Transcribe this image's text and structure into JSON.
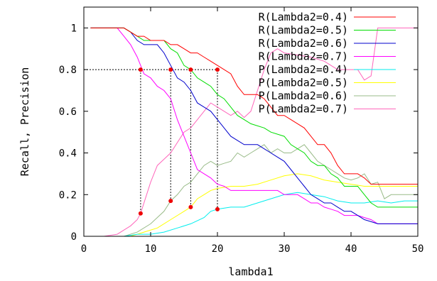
{
  "chart_data": {
    "type": "line",
    "xlabel": "lambda1",
    "ylabel": "Recall, Precision",
    "xlim": [
      0,
      50
    ],
    "ylim": [
      0,
      1.1
    ],
    "xticks": [
      0,
      10,
      20,
      30,
      40,
      50
    ],
    "yticks": [
      0,
      0.2,
      0.4,
      0.6,
      0.8,
      1
    ],
    "ytick_labels": [
      "0",
      "0.2",
      "0.4",
      "0.6",
      "0.8",
      "1"
    ],
    "grid": false,
    "legend_position": "top-right",
    "series": [
      {
        "name": "R(Lambda2=0.4)",
        "color": "#ff0000",
        "points": [
          [
            1,
            1
          ],
          [
            5,
            1
          ],
          [
            6,
            1
          ],
          [
            7,
            0.98
          ],
          [
            8,
            0.96
          ],
          [
            9,
            0.96
          ],
          [
            10,
            0.94
          ],
          [
            12,
            0.94
          ],
          [
            13,
            0.92
          ],
          [
            14,
            0.92
          ],
          [
            15,
            0.9
          ],
          [
            16,
            0.88
          ],
          [
            17,
            0.88
          ],
          [
            18,
            0.86
          ],
          [
            19,
            0.84
          ],
          [
            20,
            0.82
          ],
          [
            21,
            0.8
          ],
          [
            22,
            0.78
          ],
          [
            23,
            0.72
          ],
          [
            24,
            0.68
          ],
          [
            26,
            0.68
          ],
          [
            27,
            0.66
          ],
          [
            28,
            0.62
          ],
          [
            29,
            0.58
          ],
          [
            30,
            0.58
          ],
          [
            31,
            0.56
          ],
          [
            32,
            0.54
          ],
          [
            33,
            0.52
          ],
          [
            34,
            0.48
          ],
          [
            35,
            0.44
          ],
          [
            36,
            0.44
          ],
          [
            37,
            0.4
          ],
          [
            38,
            0.34
          ],
          [
            39,
            0.3
          ],
          [
            41,
            0.3
          ],
          [
            42,
            0.28
          ],
          [
            43,
            0.25
          ],
          [
            50,
            0.25
          ]
        ]
      },
      {
        "name": "R(Lambda2=0.5)",
        "color": "#00dd00",
        "points": [
          [
            1,
            1
          ],
          [
            5,
            1
          ],
          [
            6,
            1
          ],
          [
            7,
            0.98
          ],
          [
            8,
            0.96
          ],
          [
            9,
            0.94
          ],
          [
            12,
            0.94
          ],
          [
            13,
            0.9
          ],
          [
            14,
            0.88
          ],
          [
            15,
            0.82
          ],
          [
            16,
            0.8
          ],
          [
            17,
            0.76
          ],
          [
            18,
            0.74
          ],
          [
            19,
            0.72
          ],
          [
            20,
            0.68
          ],
          [
            21,
            0.66
          ],
          [
            22,
            0.62
          ],
          [
            23,
            0.58
          ],
          [
            24,
            0.56
          ],
          [
            25,
            0.54
          ],
          [
            27,
            0.52
          ],
          [
            28,
            0.5
          ],
          [
            30,
            0.48
          ],
          [
            31,
            0.44
          ],
          [
            32,
            0.42
          ],
          [
            33,
            0.4
          ],
          [
            34,
            0.36
          ],
          [
            35,
            0.34
          ],
          [
            36,
            0.34
          ],
          [
            37,
            0.3
          ],
          [
            38,
            0.28
          ],
          [
            39,
            0.24
          ],
          [
            41,
            0.24
          ],
          [
            42,
            0.2
          ],
          [
            43,
            0.16
          ],
          [
            44,
            0.14
          ],
          [
            50,
            0.14
          ]
        ]
      },
      {
        "name": "R(Lambda2=0.6)",
        "color": "#0000cc",
        "points": [
          [
            1,
            1
          ],
          [
            5,
            1
          ],
          [
            6,
            1
          ],
          [
            7,
            0.98
          ],
          [
            8,
            0.94
          ],
          [
            9,
            0.92
          ],
          [
            11,
            0.92
          ],
          [
            12,
            0.88
          ],
          [
            13,
            0.82
          ],
          [
            14,
            0.76
          ],
          [
            15,
            0.74
          ],
          [
            16,
            0.7
          ],
          [
            17,
            0.64
          ],
          [
            18,
            0.62
          ],
          [
            19,
            0.6
          ],
          [
            20,
            0.56
          ],
          [
            21,
            0.52
          ],
          [
            22,
            0.48
          ],
          [
            23,
            0.46
          ],
          [
            24,
            0.44
          ],
          [
            26,
            0.44
          ],
          [
            27,
            0.42
          ],
          [
            28,
            0.4
          ],
          [
            29,
            0.38
          ],
          [
            30,
            0.36
          ],
          [
            31,
            0.32
          ],
          [
            32,
            0.28
          ],
          [
            33,
            0.24
          ],
          [
            34,
            0.2
          ],
          [
            35,
            0.18
          ],
          [
            36,
            0.16
          ],
          [
            37,
            0.16
          ],
          [
            38,
            0.14
          ],
          [
            39,
            0.12
          ],
          [
            40,
            0.12
          ],
          [
            41,
            0.1
          ],
          [
            42,
            0.08
          ],
          [
            43,
            0.07
          ],
          [
            44,
            0.06
          ],
          [
            50,
            0.06
          ]
        ]
      },
      {
        "name": "R(Lambda2=0.7)",
        "color": "#ff00ff",
        "points": [
          [
            1,
            1
          ],
          [
            5,
            1
          ],
          [
            6,
            0.96
          ],
          [
            7,
            0.92
          ],
          [
            8,
            0.86
          ],
          [
            9,
            0.78
          ],
          [
            10,
            0.76
          ],
          [
            11,
            0.72
          ],
          [
            12,
            0.7
          ],
          [
            13,
            0.66
          ],
          [
            14,
            0.56
          ],
          [
            15,
            0.48
          ],
          [
            16,
            0.4
          ],
          [
            17,
            0.32
          ],
          [
            18,
            0.3
          ],
          [
            19,
            0.28
          ],
          [
            20,
            0.25
          ],
          [
            21,
            0.24
          ],
          [
            22,
            0.22
          ],
          [
            29,
            0.22
          ],
          [
            30,
            0.2
          ],
          [
            32,
            0.2
          ],
          [
            33,
            0.18
          ],
          [
            34,
            0.16
          ],
          [
            35,
            0.16
          ],
          [
            36,
            0.14
          ],
          [
            37,
            0.13
          ],
          [
            38,
            0.12
          ],
          [
            39,
            0.1
          ],
          [
            41,
            0.1
          ],
          [
            42,
            0.09
          ],
          [
            43,
            0.08
          ],
          [
            44,
            0.06
          ],
          [
            50,
            0.06
          ]
        ]
      },
      {
        "name": "P(Lambda2=0.4)",
        "color": "#00eeee",
        "points": [
          [
            0,
            0
          ],
          [
            4,
            0
          ],
          [
            6,
            0
          ],
          [
            8,
            0.01
          ],
          [
            10,
            0.01
          ],
          [
            12,
            0.02
          ],
          [
            14,
            0.04
          ],
          [
            16,
            0.06
          ],
          [
            18,
            0.09
          ],
          [
            19,
            0.12
          ],
          [
            20,
            0.13
          ],
          [
            22,
            0.14
          ],
          [
            24,
            0.14
          ],
          [
            26,
            0.16
          ],
          [
            28,
            0.18
          ],
          [
            30,
            0.2
          ],
          [
            32,
            0.21
          ],
          [
            34,
            0.2
          ],
          [
            36,
            0.19
          ],
          [
            38,
            0.17
          ],
          [
            40,
            0.16
          ],
          [
            42,
            0.16
          ],
          [
            44,
            0.17
          ],
          [
            46,
            0.16
          ],
          [
            48,
            0.17
          ],
          [
            50,
            0.17
          ]
        ]
      },
      {
        "name": "P(Lambda2=0.5)",
        "color": "#ffff00",
        "points": [
          [
            0,
            0
          ],
          [
            4,
            0
          ],
          [
            7,
            0
          ],
          [
            9,
            0.02
          ],
          [
            11,
            0.04
          ],
          [
            13,
            0.08
          ],
          [
            15,
            0.12
          ],
          [
            16,
            0.14
          ],
          [
            17,
            0.18
          ],
          [
            18,
            0.2
          ],
          [
            19,
            0.22
          ],
          [
            20,
            0.23
          ],
          [
            22,
            0.24
          ],
          [
            24,
            0.24
          ],
          [
            26,
            0.25
          ],
          [
            28,
            0.27
          ],
          [
            30,
            0.29
          ],
          [
            32,
            0.3
          ],
          [
            34,
            0.29
          ],
          [
            36,
            0.27
          ],
          [
            38,
            0.26
          ],
          [
            40,
            0.25
          ],
          [
            42,
            0.24
          ],
          [
            44,
            0.24
          ],
          [
            46,
            0.24
          ],
          [
            50,
            0.24
          ]
        ]
      },
      {
        "name": "P(Lambda2=0.6)",
        "color": "#99bb88",
        "points": [
          [
            0,
            0
          ],
          [
            4,
            0
          ],
          [
            6,
            0
          ],
          [
            8,
            0.02
          ],
          [
            10,
            0.06
          ],
          [
            12,
            0.12
          ],
          [
            13,
            0.17
          ],
          [
            14,
            0.2
          ],
          [
            15,
            0.24
          ],
          [
            16,
            0.26
          ],
          [
            17,
            0.3
          ],
          [
            18,
            0.34
          ],
          [
            19,
            0.36
          ],
          [
            20,
            0.34
          ],
          [
            21,
            0.35
          ],
          [
            22,
            0.36
          ],
          [
            23,
            0.4
          ],
          [
            24,
            0.38
          ],
          [
            25,
            0.4
          ],
          [
            26,
            0.42
          ],
          [
            27,
            0.44
          ],
          [
            28,
            0.4
          ],
          [
            29,
            0.42
          ],
          [
            30,
            0.4
          ],
          [
            31,
            0.4
          ],
          [
            32,
            0.42
          ],
          [
            33,
            0.44
          ],
          [
            34,
            0.4
          ],
          [
            35,
            0.36
          ],
          [
            36,
            0.34
          ],
          [
            37,
            0.32
          ],
          [
            38,
            0.3
          ],
          [
            39,
            0.28
          ],
          [
            40,
            0.27
          ],
          [
            41,
            0.28
          ],
          [
            42,
            0.3
          ],
          [
            43,
            0.25
          ],
          [
            44,
            0.26
          ],
          [
            45,
            0.18
          ],
          [
            46,
            0.2
          ],
          [
            50,
            0.2
          ]
        ]
      },
      {
        "name": "P(Lambda2=0.7)",
        "color": "#ff66bb",
        "points": [
          [
            0,
            0
          ],
          [
            3,
            0
          ],
          [
            5,
            0.01
          ],
          [
            6,
            0.03
          ],
          [
            7,
            0.05
          ],
          [
            8,
            0.08
          ],
          [
            8.5,
            0.11
          ],
          [
            9,
            0.16
          ],
          [
            10,
            0.26
          ],
          [
            11,
            0.34
          ],
          [
            12,
            0.37
          ],
          [
            13,
            0.4
          ],
          [
            14,
            0.45
          ],
          [
            15,
            0.5
          ],
          [
            16,
            0.52
          ],
          [
            17,
            0.56
          ],
          [
            18,
            0.6
          ],
          [
            19,
            0.64
          ],
          [
            20,
            0.62
          ],
          [
            21,
            0.6
          ],
          [
            22,
            0.58
          ],
          [
            23,
            0.6
          ],
          [
            24,
            0.57
          ],
          [
            25,
            0.6
          ],
          [
            26,
            0.7
          ],
          [
            27,
            0.8
          ],
          [
            28,
            0.88
          ],
          [
            29,
            0.9
          ],
          [
            30,
            0.88
          ],
          [
            32,
            0.87
          ],
          [
            34,
            0.86
          ],
          [
            36,
            0.84
          ],
          [
            38,
            0.8
          ],
          [
            40,
            0.8
          ],
          [
            41,
            0.8
          ],
          [
            42,
            0.75
          ],
          [
            43,
            0.77
          ],
          [
            44,
            1
          ],
          [
            50,
            1
          ]
        ]
      }
    ],
    "annotations": {
      "guide_level": 0.8,
      "guide_points": [
        {
          "x": 8.5,
          "recall": 0.8,
          "precision": 0.11
        },
        {
          "x": 13,
          "recall": 0.8,
          "precision": 0.17
        },
        {
          "x": 16,
          "recall": 0.8,
          "precision": 0.14
        },
        {
          "x": 20,
          "recall": 0.8,
          "precision": 0.13
        }
      ],
      "marker_color": "#ee0000"
    }
  }
}
